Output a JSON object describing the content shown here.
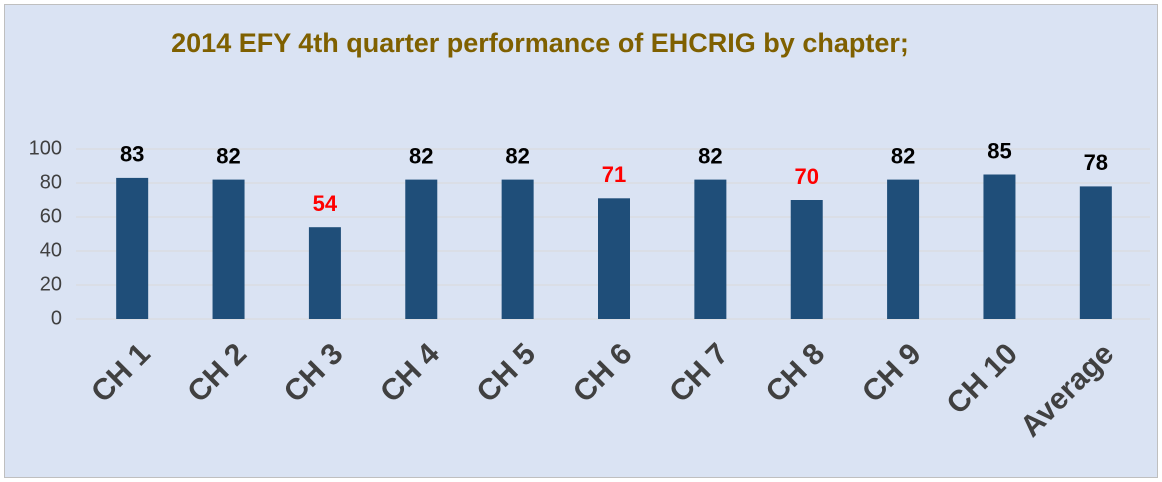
{
  "chart_data": {
    "type": "bar",
    "title": "2014 EFY 4th quarter performance of EHCRIG by chapter;",
    "categories": [
      "CH 1",
      "CH 2",
      "CH 3",
      "CH 4",
      "CH 5",
      "CH 6",
      "CH 7",
      "CH 8",
      "CH 9",
      "CH 10",
      "Average"
    ],
    "values": [
      83,
      82,
      54,
      82,
      82,
      71,
      82,
      70,
      82,
      85,
      78
    ],
    "color": "#1f4e79",
    "value_label_colors": [
      "#000000",
      "#000000",
      "#ff0000",
      "#000000",
      "#000000",
      "#ff0000",
      "#000000",
      "#ff0000",
      "#000000",
      "#000000",
      "#000000"
    ],
    "ylim": [
      0,
      100
    ],
    "yticks": [
      0,
      20,
      40,
      60,
      80,
      100
    ],
    "grid": true
  }
}
